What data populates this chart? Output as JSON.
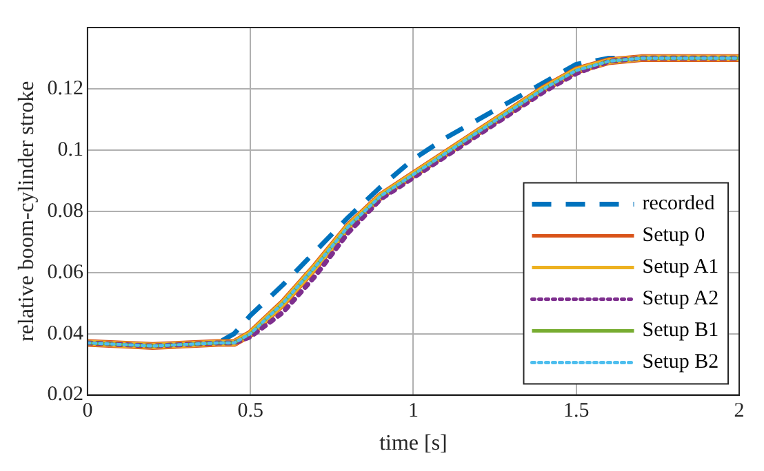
{
  "chart_data": {
    "type": "line",
    "xlabel": "time [s]",
    "ylabel": "relative boom-cylinder stroke",
    "x": [
      0,
      0.2,
      0.4,
      0.45,
      0.5,
      0.6,
      0.7,
      0.8,
      0.9,
      1.0,
      1.1,
      1.2,
      1.3,
      1.4,
      1.5,
      1.6,
      1.7,
      1.8,
      1.9,
      2.0
    ],
    "series": [
      {
        "name": "recorded",
        "color": "#0072bd",
        "line_style": "dashed",
        "values": [
          0.037,
          0.036,
          0.037,
          0.04,
          0.046,
          0.056,
          0.067,
          0.078,
          0.088,
          0.097,
          0.104,
          0.11,
          0.116,
          0.122,
          0.128,
          0.13,
          0.13,
          0.13,
          0.13,
          0.13
        ]
      },
      {
        "name": "Setup 0",
        "color": "#d95319",
        "line_style": "solid",
        "values": [
          0.037,
          0.036,
          0.037,
          0.037,
          0.04,
          0.05,
          0.062,
          0.075,
          0.085,
          0.092,
          0.099,
          0.106,
          0.113,
          0.12,
          0.126,
          0.129,
          0.13,
          0.13,
          0.13,
          0.13
        ]
      },
      {
        "name": "Setup A1",
        "color": "#edb120",
        "line_style": "solid",
        "values": [
          0.037,
          0.036,
          0.037,
          0.037,
          0.04,
          0.05,
          0.062,
          0.075,
          0.085,
          0.092,
          0.099,
          0.106,
          0.113,
          0.12,
          0.126,
          0.129,
          0.13,
          0.13,
          0.13,
          0.13
        ]
      },
      {
        "name": "Setup A2",
        "color": "#7e2f8e",
        "line_style": "dotted",
        "values": [
          0.037,
          0.036,
          0.037,
          0.037,
          0.039,
          0.047,
          0.059,
          0.073,
          0.084,
          0.091,
          0.098,
          0.105,
          0.112,
          0.119,
          0.125,
          0.129,
          0.13,
          0.13,
          0.13,
          0.13
        ]
      },
      {
        "name": "Setup B1",
        "color": "#77ac30",
        "line_style": "solid",
        "values": [
          0.037,
          0.036,
          0.037,
          0.037,
          0.04,
          0.05,
          0.062,
          0.075,
          0.085,
          0.092,
          0.099,
          0.106,
          0.113,
          0.12,
          0.126,
          0.129,
          0.13,
          0.13,
          0.13,
          0.13
        ]
      },
      {
        "name": "Setup B2",
        "color": "#4dbeee",
        "line_style": "dotted",
        "values": [
          0.037,
          0.036,
          0.037,
          0.037,
          0.04,
          0.05,
          0.062,
          0.075,
          0.085,
          0.092,
          0.099,
          0.106,
          0.113,
          0.12,
          0.126,
          0.129,
          0.13,
          0.13,
          0.13,
          0.13
        ]
      }
    ],
    "xlim": [
      0,
      2
    ],
    "xticks": [
      0,
      0.5,
      1,
      1.5,
      2
    ],
    "ylim": [
      0.02,
      0.14
    ],
    "yticks": [
      0.02,
      0.04,
      0.06,
      0.08,
      0.1,
      0.12
    ],
    "grid": true,
    "legend": "bottom right",
    "marker": "none"
  }
}
